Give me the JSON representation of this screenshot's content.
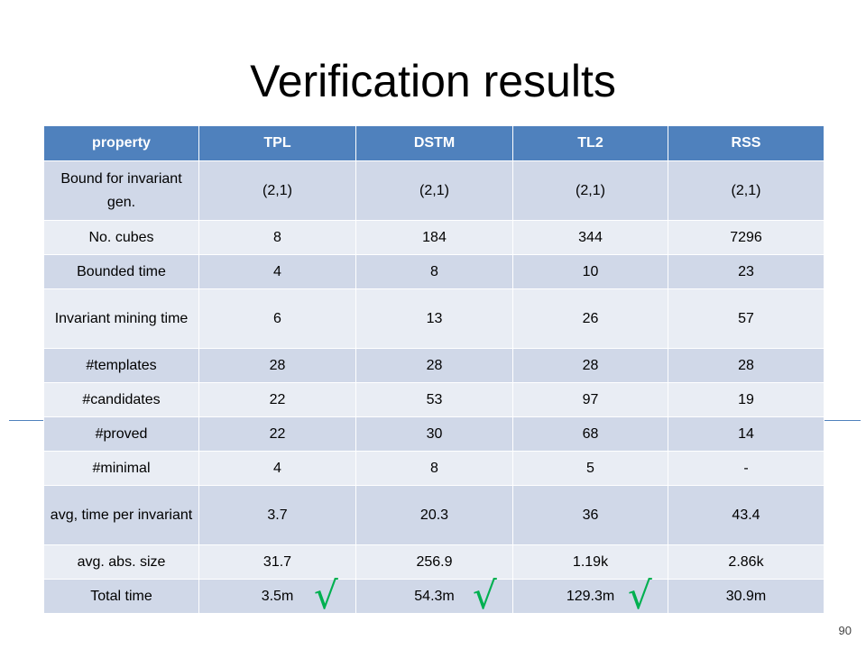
{
  "slide": {
    "title": "Verification results",
    "page_number": "90"
  },
  "table": {
    "headers": [
      "property",
      "TPL",
      "DSTM",
      "TL2",
      "RSS"
    ],
    "rows": [
      [
        "Bound for invariant gen.",
        "(2,1)",
        "(2,1)",
        "(2,1)",
        "(2,1)"
      ],
      [
        "No. cubes",
        "8",
        "184",
        "344",
        "7296"
      ],
      [
        "Bounded time",
        "4",
        "8",
        "10",
        "23"
      ],
      [
        "Invariant mining time",
        "6",
        "13",
        "26",
        "57"
      ],
      [
        "#templates",
        "28",
        "28",
        "28",
        "28"
      ],
      [
        "#candidates",
        "22",
        "53",
        "97",
        "19"
      ],
      [
        "#proved",
        "22",
        "30",
        "68",
        "14"
      ],
      [
        "#minimal",
        "4",
        "8",
        "5",
        "-"
      ],
      [
        "avg, time per invariant",
        "3.7",
        "20.3",
        "36",
        "43.4"
      ],
      [
        "avg. abs. size",
        "31.7",
        "256.9",
        "1.19k",
        "2.86k"
      ],
      [
        "Total time",
        "3.5m",
        "54.3m",
        "129.3m",
        "30.9m"
      ]
    ]
  },
  "marks": {
    "check_symbol": "√",
    "check_color": "#00b050"
  },
  "colors": {
    "header_bg": "#4f81bd",
    "row_dark": "#d0d8e8",
    "row_light": "#e9edf4"
  }
}
